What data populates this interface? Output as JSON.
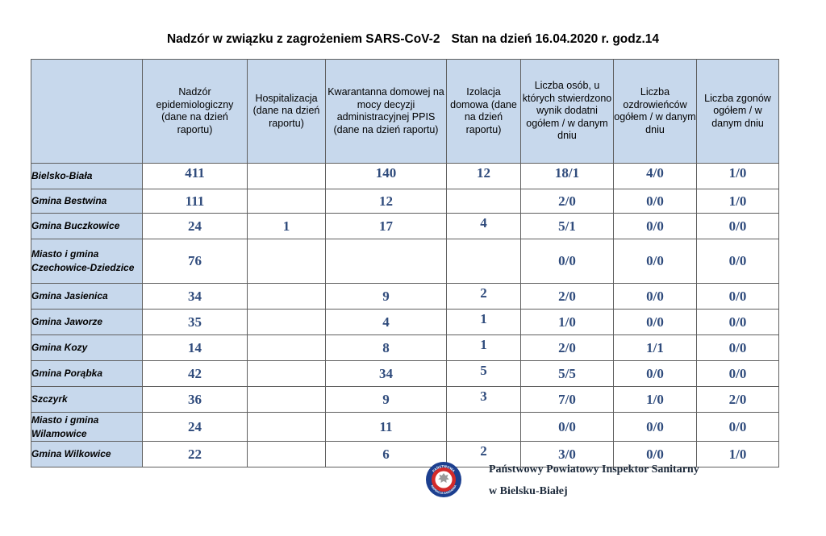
{
  "title": {
    "main": "Nadzór w związku z zagrożeniem SARS-CoV-2",
    "date": "Stan na dzień 16.04.2020 r. godz.14"
  },
  "table": {
    "headers": [
      "",
      "Nadzór epidemiologiczny (dane na dzień raportu)",
      "Hospitalizacja (dane na dzień raportu)",
      "Kwarantanna domowej na mocy decyzji administracyjnej PPIS (dane na dzień raportu)",
      "Izolacja domowa (dane na dzień raportu)",
      "Liczba osób, u których stwierdzono wynik dodatni ogółem / w danym dniu",
      "Liczba ozdrowieńców ogółem / w danym dniu",
      "Liczba zgonów ogółem / w danym dniu"
    ],
    "rows": [
      {
        "name": "Bielsko-Biała",
        "cells": [
          "411",
          "",
          "140",
          "12",
          "18/1",
          "4/0",
          "1/0"
        ]
      },
      {
        "name": "Gmina Bestwina",
        "cells": [
          "111",
          "",
          "12",
          "",
          "2/0",
          "0/0",
          "1/0"
        ]
      },
      {
        "name": "Gmina Buczkowice",
        "cells": [
          "24",
          "1",
          "17",
          "4",
          "5/1",
          "0/0",
          "0/0"
        ]
      },
      {
        "name": "Miasto i gmina Czechowice-Dziedzice",
        "cells": [
          "76",
          "",
          "",
          "",
          "0/0",
          "0/0",
          "0/0"
        ]
      },
      {
        "name": "Gmina Jasienica",
        "cells": [
          "34",
          "",
          "9",
          "2",
          "2/0",
          "0/0",
          "0/0"
        ]
      },
      {
        "name": "Gmina Jaworze",
        "cells": [
          "35",
          "",
          "4",
          "1",
          "1/0",
          "0/0",
          "0/0"
        ]
      },
      {
        "name": "Gmina Kozy",
        "cells": [
          "14",
          "",
          "8",
          "1",
          "2/0",
          "1/1",
          "0/0"
        ]
      },
      {
        "name": "Gmina Porąbka",
        "cells": [
          "42",
          "",
          "34",
          "5",
          "5/5",
          "0/0",
          "0/0"
        ]
      },
      {
        "name": "Szczyrk",
        "cells": [
          "36",
          "",
          "9",
          "3",
          "7/0",
          "1/0",
          "2/0"
        ]
      },
      {
        "name": "Miasto i gmina Wilamowice",
        "cells": [
          "24",
          "",
          "11",
          "",
          "0/0",
          "0/0",
          "0/0"
        ]
      },
      {
        "name": "Gmina Wilkowice",
        "cells": [
          "22",
          "",
          "6",
          "2",
          "3/0",
          "0/0",
          "1/0"
        ]
      }
    ]
  },
  "footer": {
    "line1": "Państwowy Powiatowy Inspektor Sanitarny",
    "line2": "w Bielsku-Białej",
    "seal_icon": "sanitary-inspection-emblem-icon",
    "seal_text_top": "PAŃSTWOWA",
    "seal_text_bottom": "INSPEKCJA SANITARNA"
  },
  "colors": {
    "header_bg": "#c7d8ec",
    "value_text": "#2f4b7c",
    "seal_ring": "#1c3f8f",
    "seal_inner": "#d32a2a"
  }
}
